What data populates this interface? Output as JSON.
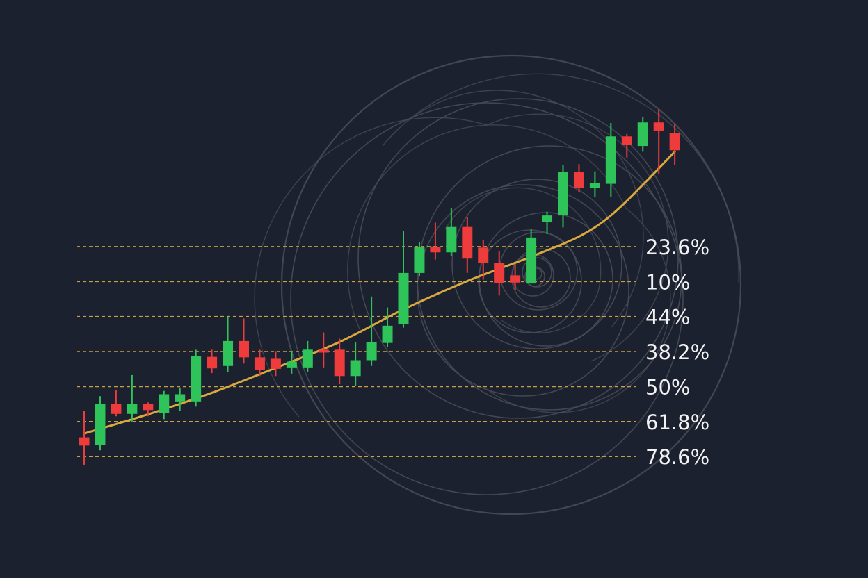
{
  "chart_data": {
    "type": "candlestick",
    "title": "",
    "xlabel": "",
    "ylabel": "",
    "ylim": [
      0,
      1
    ],
    "grid": false,
    "legend": "none",
    "colors": {
      "background": "#1c2130",
      "bullish": "#2fc45a",
      "bearish": "#ee3b3b",
      "trend_line": "#d9a93e",
      "fib_line": "#c9a040",
      "spiral": "#4a4e58",
      "label": "#f2f2f2"
    },
    "fibonacci_levels": [
      {
        "label": "23.6%",
        "value": 0.587
      },
      {
        "label": "10%",
        "value": 0.514
      },
      {
        "label": "44%",
        "value": 0.441
      },
      {
        "label": "38.2%",
        "value": 0.368
      },
      {
        "label": "50%",
        "value": 0.295
      },
      {
        "label": "61.8%",
        "value": 0.222
      },
      {
        "label": "78.6%",
        "value": 0.149
      }
    ],
    "candles": [
      {
        "o": 0.189,
        "c": 0.172,
        "h": 0.244,
        "l": 0.132
      },
      {
        "o": 0.173,
        "c": 0.259,
        "h": 0.275,
        "l": 0.162
      },
      {
        "o": 0.258,
        "c": 0.238,
        "h": 0.288,
        "l": 0.233
      },
      {
        "o": 0.238,
        "c": 0.258,
        "h": 0.319,
        "l": 0.222
      },
      {
        "o": 0.258,
        "c": 0.246,
        "h": 0.262,
        "l": 0.233
      },
      {
        "o": 0.24,
        "c": 0.279,
        "h": 0.286,
        "l": 0.227
      },
      {
        "o": 0.264,
        "c": 0.279,
        "h": 0.293,
        "l": 0.245
      },
      {
        "o": 0.264,
        "c": 0.358,
        "h": 0.372,
        "l": 0.253
      },
      {
        "o": 0.357,
        "c": 0.333,
        "h": 0.372,
        "l": 0.323
      },
      {
        "o": 0.338,
        "c": 0.39,
        "h": 0.44,
        "l": 0.326
      },
      {
        "o": 0.39,
        "c": 0.356,
        "h": 0.437,
        "l": 0.343
      },
      {
        "o": 0.356,
        "c": 0.33,
        "h": 0.372,
        "l": 0.317
      },
      {
        "o": 0.353,
        "c": 0.332,
        "h": 0.369,
        "l": 0.317
      },
      {
        "o": 0.335,
        "c": 0.347,
        "h": 0.369,
        "l": 0.322
      },
      {
        "o": 0.335,
        "c": 0.372,
        "h": 0.39,
        "l": 0.326
      },
      {
        "o": 0.372,
        "c": 0.366,
        "h": 0.408,
        "l": 0.335
      },
      {
        "o": 0.372,
        "c": 0.317,
        "h": 0.395,
        "l": 0.3
      },
      {
        "o": 0.317,
        "c": 0.35,
        "h": 0.387,
        "l": 0.297
      },
      {
        "o": 0.35,
        "c": 0.387,
        "h": 0.483,
        "l": 0.338
      },
      {
        "o": 0.386,
        "c": 0.422,
        "h": 0.46,
        "l": 0.378
      },
      {
        "o": 0.426,
        "c": 0.532,
        "h": 0.619,
        "l": 0.418
      },
      {
        "o": 0.532,
        "c": 0.586,
        "h": 0.597,
        "l": 0.525
      },
      {
        "o": 0.587,
        "c": 0.575,
        "h": 0.637,
        "l": 0.56
      },
      {
        "o": 0.575,
        "c": 0.628,
        "h": 0.667,
        "l": 0.568
      },
      {
        "o": 0.628,
        "c": 0.562,
        "h": 0.649,
        "l": 0.532
      },
      {
        "o": 0.585,
        "c": 0.553,
        "h": 0.6,
        "l": 0.518
      },
      {
        "o": 0.553,
        "c": 0.511,
        "h": 0.577,
        "l": 0.485
      },
      {
        "o": 0.527,
        "c": 0.512,
        "h": 0.55,
        "l": 0.496
      },
      {
        "o": 0.51,
        "c": 0.606,
        "h": 0.623,
        "l": 0.51
      },
      {
        "o": 0.638,
        "c": 0.652,
        "h": 0.66,
        "l": 0.613
      },
      {
        "o": 0.652,
        "c": 0.742,
        "h": 0.757,
        "l": 0.627
      },
      {
        "o": 0.742,
        "c": 0.709,
        "h": 0.759,
        "l": 0.701
      },
      {
        "o": 0.709,
        "c": 0.719,
        "h": 0.744,
        "l": 0.69
      },
      {
        "o": 0.718,
        "c": 0.817,
        "h": 0.845,
        "l": 0.69
      },
      {
        "o": 0.817,
        "c": 0.8,
        "h": 0.822,
        "l": 0.773
      },
      {
        "o": 0.797,
        "c": 0.846,
        "h": 0.858,
        "l": 0.785
      },
      {
        "o": 0.846,
        "c": 0.829,
        "h": 0.873,
        "l": 0.739
      },
      {
        "o": 0.824,
        "c": 0.788,
        "h": 0.843,
        "l": 0.758
      }
    ],
    "trend_line": [
      {
        "i": 0,
        "y": 0.197
      },
      {
        "i": 4,
        "y": 0.237
      },
      {
        "i": 8,
        "y": 0.282
      },
      {
        "i": 12,
        "y": 0.334
      },
      {
        "i": 16,
        "y": 0.388
      },
      {
        "i": 20,
        "y": 0.456
      },
      {
        "i": 24,
        "y": 0.515
      },
      {
        "i": 28,
        "y": 0.566
      },
      {
        "i": 31,
        "y": 0.608
      },
      {
        "i": 33,
        "y": 0.652
      },
      {
        "i": 35,
        "y": 0.716
      },
      {
        "i": 37,
        "y": 0.785
      }
    ]
  }
}
